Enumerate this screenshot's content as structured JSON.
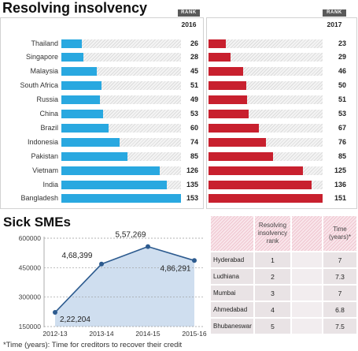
{
  "chart_data": [
    {
      "type": "bar",
      "orientation": "horizontal",
      "title": "Resolving insolvency",
      "value_header": "RANK",
      "categories": [
        "Thailand",
        "Singapore",
        "Malaysia",
        "South Africa",
        "Russia",
        "China",
        "Brazil",
        "Indonesia",
        "Pakistan",
        "Vietnam",
        "India",
        "Bangladesh"
      ],
      "series": [
        {
          "name": "2016",
          "color": "#29a8e0",
          "values": [
            26,
            28,
            45,
            51,
            49,
            53,
            60,
            74,
            85,
            126,
            135,
            153
          ]
        },
        {
          "name": "2017",
          "color": "#c8202e",
          "values": [
            23,
            29,
            46,
            50,
            51,
            53,
            67,
            76,
            85,
            125,
            136,
            151
          ]
        }
      ]
    },
    {
      "type": "area",
      "title": "Sick SMEs",
      "x": [
        "2012-13",
        "2013-14",
        "2014-15",
        "2015-16"
      ],
      "values": [
        222204,
        468399,
        557269,
        486291
      ],
      "value_labels": [
        "2,22,204",
        "4,68,399",
        "5,57,269",
        "4,86,291"
      ],
      "yticks": [
        "600000",
        "450000",
        "300000",
        "150000"
      ],
      "ylim": [
        150000,
        600000
      ],
      "grid": true,
      "line_color": "#2d5b8f",
      "fill_color": "#cfdeef"
    },
    {
      "type": "table",
      "headers": [
        "Resolving insolvency rank",
        "Time (years)*"
      ],
      "rows": [
        {
          "city": "Hyderabad",
          "rank": "1",
          "time": "7"
        },
        {
          "city": "Ludhiana",
          "rank": "2",
          "time": "7.3"
        },
        {
          "city": "Mumbai",
          "rank": "3",
          "time": "7"
        },
        {
          "city": "Ahmedabad",
          "rank": "4",
          "time": "6.8"
        },
        {
          "city": "Bhubaneswar",
          "rank": "5",
          "time": "7.5"
        }
      ]
    }
  ],
  "footnote": "*Time (years): Time for creditors to recover their credit"
}
